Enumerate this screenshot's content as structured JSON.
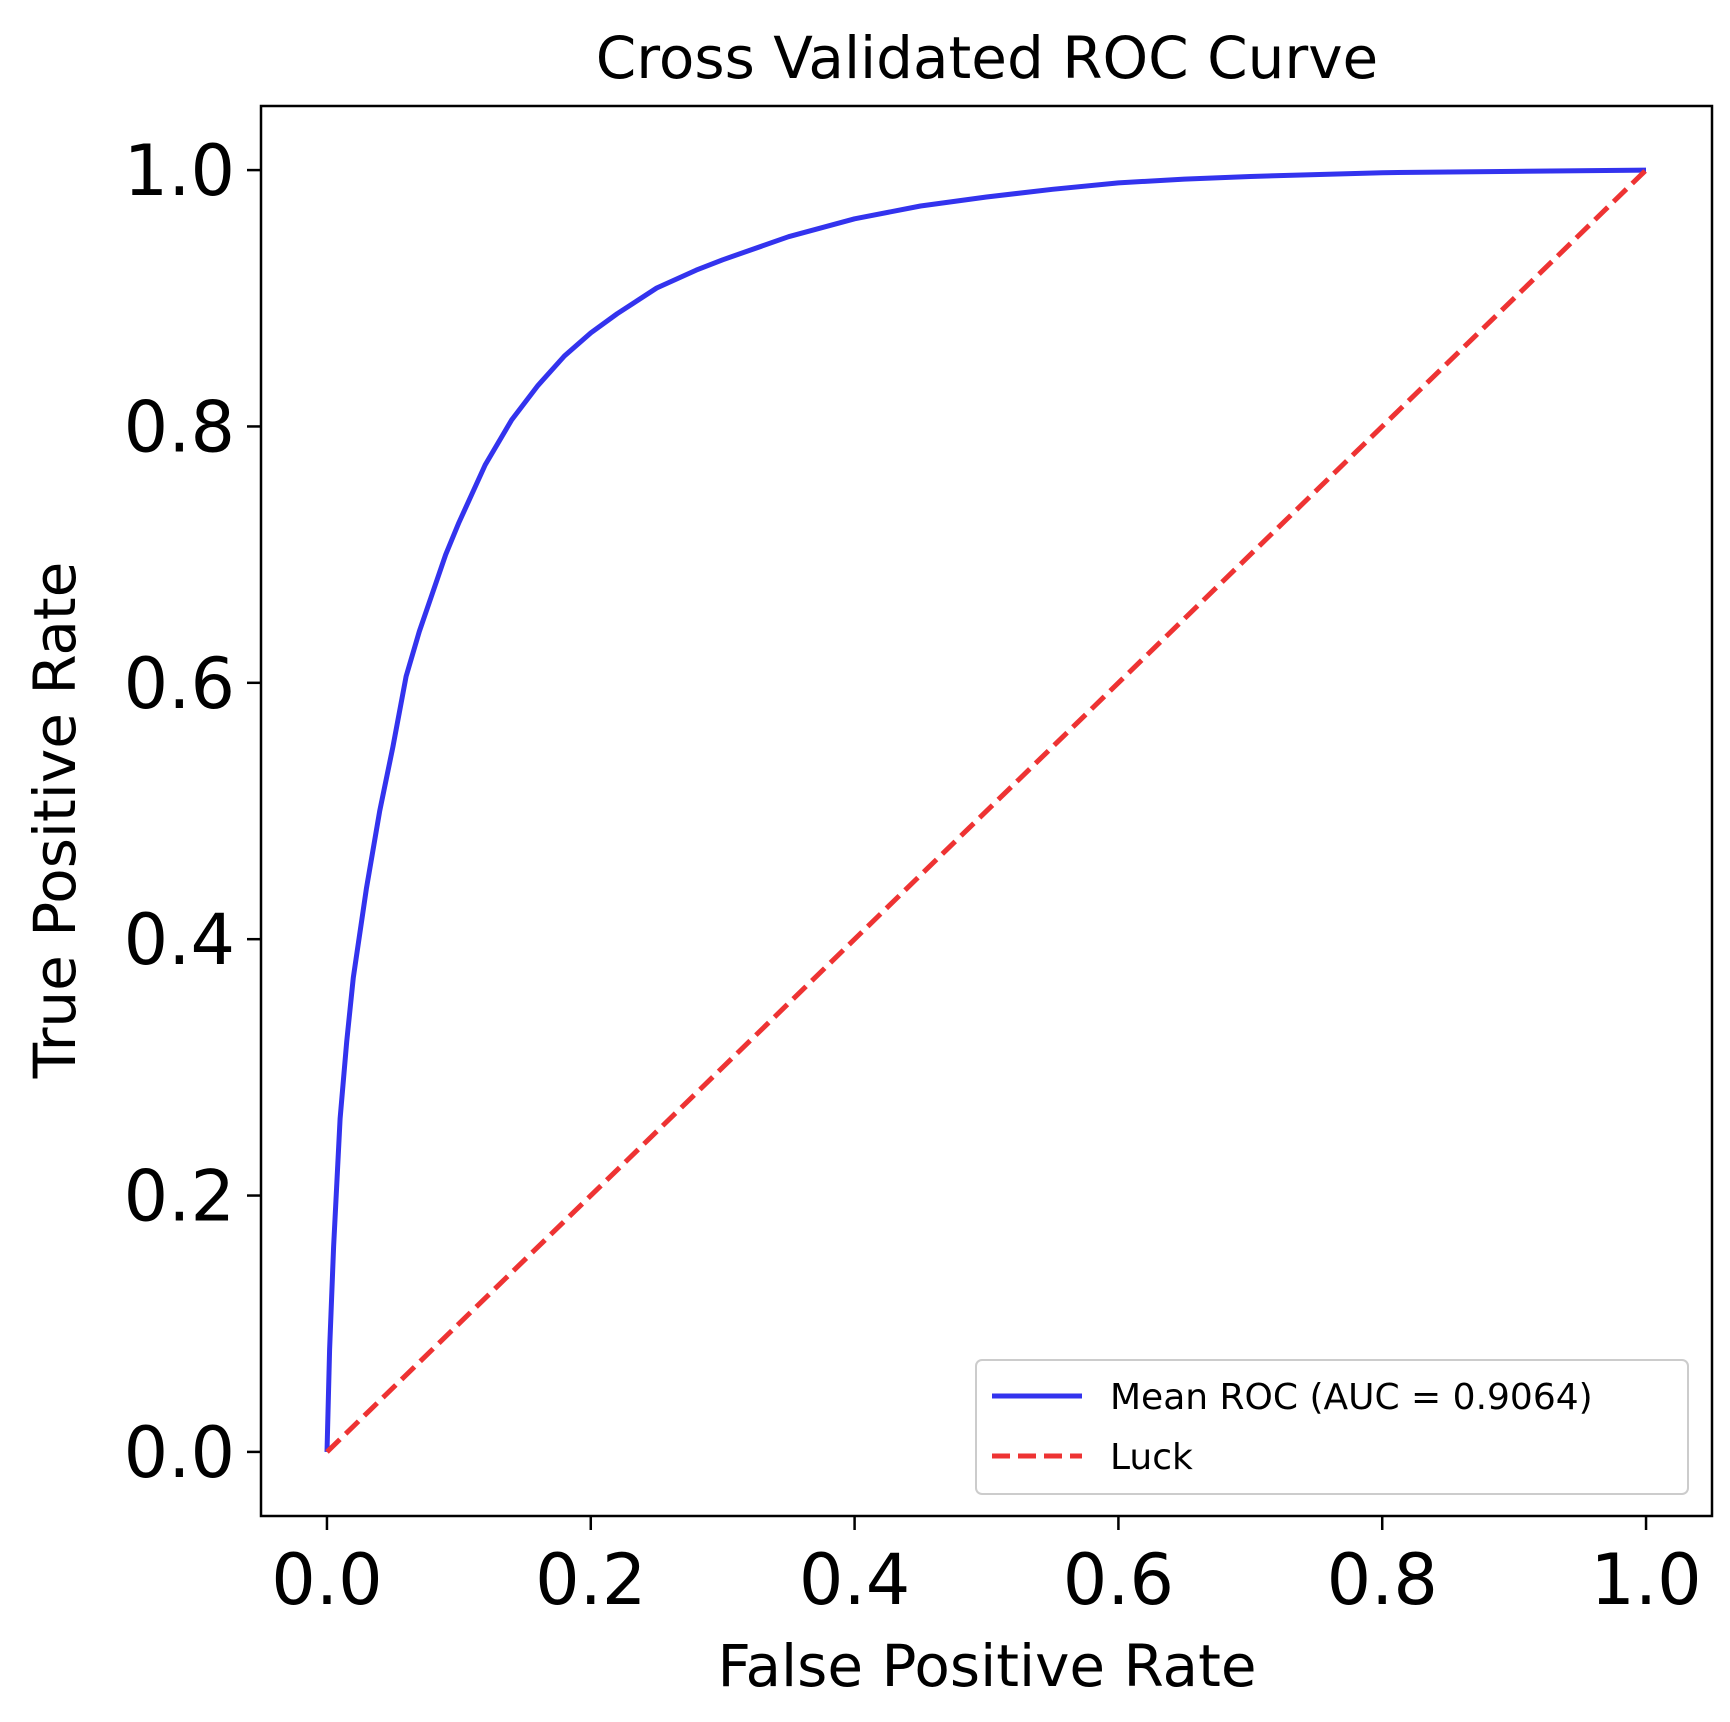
{
  "chart_data": {
    "type": "line",
    "title": "Cross Validated ROC Curve",
    "xlabel": "False Positive Rate",
    "ylabel": "True Positive Rate",
    "xlim": [
      -0.05,
      1.05
    ],
    "ylim": [
      -0.05,
      1.05
    ],
    "xticks": [
      0.0,
      0.2,
      0.4,
      0.6,
      0.8,
      1.0
    ],
    "yticks": [
      0.0,
      0.2,
      0.4,
      0.6,
      0.8,
      1.0
    ],
    "xtick_labels": [
      "0.0",
      "0.2",
      "0.4",
      "0.6",
      "0.8",
      "1.0"
    ],
    "ytick_labels": [
      "0.0",
      "0.2",
      "0.4",
      "0.6",
      "0.8",
      "1.0"
    ],
    "grid": false,
    "legend_position": "lower-right",
    "series": [
      {
        "name": "Mean ROC (AUC = 0.9064)",
        "color": "#3333ee",
        "style": "solid",
        "x": [
          0.0,
          0.002,
          0.005,
          0.01,
          0.015,
          0.02,
          0.03,
          0.04,
          0.05,
          0.06,
          0.07,
          0.08,
          0.09,
          0.1,
          0.12,
          0.14,
          0.16,
          0.18,
          0.2,
          0.22,
          0.25,
          0.28,
          0.3,
          0.35,
          0.4,
          0.45,
          0.5,
          0.55,
          0.6,
          0.65,
          0.7,
          0.8,
          0.9,
          1.0
        ],
        "y": [
          0.0,
          0.08,
          0.16,
          0.26,
          0.32,
          0.37,
          0.44,
          0.5,
          0.55,
          0.605,
          0.64,
          0.67,
          0.7,
          0.725,
          0.77,
          0.805,
          0.832,
          0.855,
          0.873,
          0.888,
          0.908,
          0.922,
          0.93,
          0.948,
          0.962,
          0.972,
          0.979,
          0.985,
          0.99,
          0.993,
          0.995,
          0.998,
          0.999,
          1.0
        ]
      },
      {
        "name": "Luck",
        "color": "#ee3333",
        "style": "dashed",
        "x": [
          0.0,
          1.0
        ],
        "y": [
          0.0,
          1.0
        ]
      }
    ]
  }
}
